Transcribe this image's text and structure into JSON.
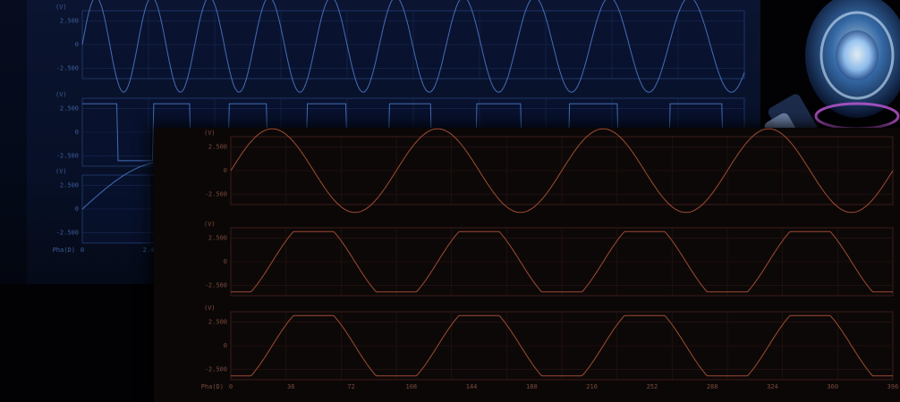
{
  "chart_data": [
    {
      "type": "line",
      "name": "background-panel",
      "plots": [
        {
          "unit": "(V)",
          "yticks": [
            "2.500",
            "0",
            "-2.500"
          ],
          "ylim": [
            -2.5,
            2.5
          ],
          "wave": "sine-chirp",
          "amplitude": 2.5,
          "cycles": 9
        },
        {
          "unit": "(V)",
          "yticks": [
            "2.500",
            "0",
            "-2.500"
          ],
          "ylim": [
            -2.5,
            2.5
          ],
          "wave": "square-chirp",
          "amplitude": 1.5,
          "cycles": 7
        },
        {
          "unit": "(V)",
          "yticks": [
            "2.500",
            "0",
            "-2.500"
          ],
          "ylim": [
            -2.5,
            2.5
          ],
          "wave": "sine",
          "amplitude": 2.5,
          "cycles": 2
        }
      ],
      "xlabel": "Pha(D)",
      "xticks": [
        "0",
        "2.4"
      ],
      "color": "#4a78c8"
    },
    {
      "type": "line",
      "name": "foreground-panel",
      "plots": [
        {
          "unit": "(V)",
          "yticks": [
            "2.500",
            "0",
            "-2.500"
          ],
          "ylim": [
            -2.5,
            2.5
          ],
          "wave": "sine",
          "amplitude": 2.2,
          "cycles": 4
        },
        {
          "unit": "(V)",
          "yticks": [
            "2.500",
            "0",
            "-2.500"
          ],
          "ylim": [
            -2.5,
            2.5
          ],
          "wave": "clipped-sine",
          "amplitude": 2.2,
          "cycles": 4
        },
        {
          "unit": "(V)",
          "yticks": [
            "2.500",
            "0",
            "-2.500"
          ],
          "ylim": [
            -2.5,
            2.5
          ],
          "wave": "clipped-sine",
          "amplitude": 2.2,
          "cycles": 4
        }
      ],
      "xlabel": "Pha(D)",
      "xticks": [
        "0",
        "36",
        "72",
        "108",
        "144",
        "180",
        "216",
        "252",
        "288",
        "324",
        "360",
        "396"
      ],
      "xlim": [
        0,
        420
      ],
      "color": "#b8583a"
    }
  ]
}
